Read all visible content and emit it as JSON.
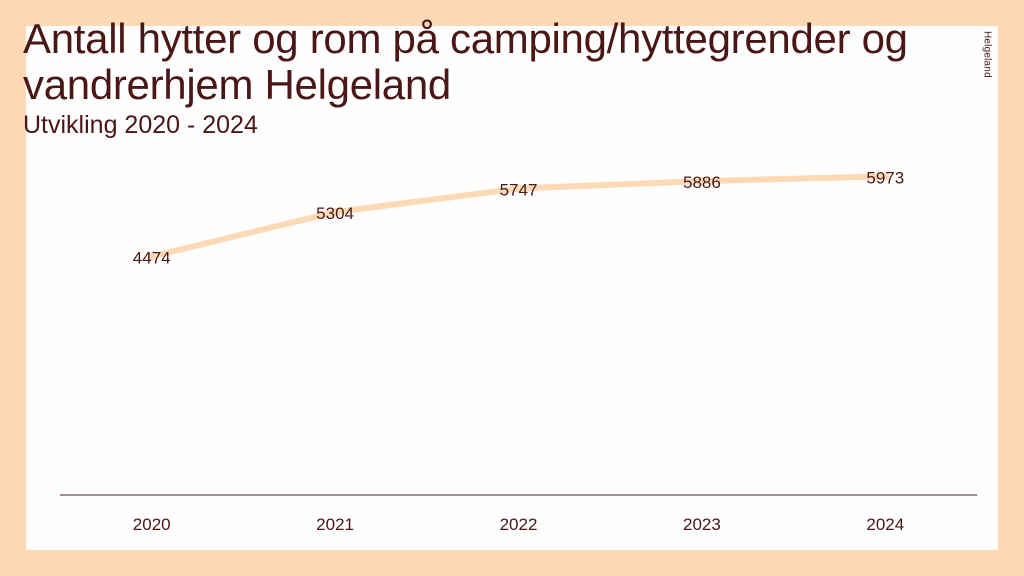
{
  "title": "Antall hytter og rom på camping/hyttegrender og vandrerhjem Helgeland",
  "subtitle": "Utvikling 2020 - 2024",
  "logo": {
    "text": "Helgeland",
    "icon": "helgeland-logo-icon"
  },
  "colors": {
    "background": "#FDD9B5",
    "line": "#FDD9B5",
    "text": "#4A1616"
  },
  "chart_data": {
    "type": "line",
    "title": "Antall hytter og rom på camping/hyttegrender og vandrerhjem Helgeland",
    "subtitle": "Utvikling 2020 - 2024",
    "categories": [
      "2020",
      "2021",
      "2022",
      "2023",
      "2024"
    ],
    "series": [
      {
        "values": [
          4474,
          5304,
          5747,
          5886,
          5973
        ]
      }
    ],
    "data_labels": [
      "4474",
      "5304",
      "5747",
      "5886",
      "5973"
    ],
    "ylim": [
      0,
      7500
    ],
    "grid": false,
    "legend": "none",
    "y_axis_visible": false
  }
}
